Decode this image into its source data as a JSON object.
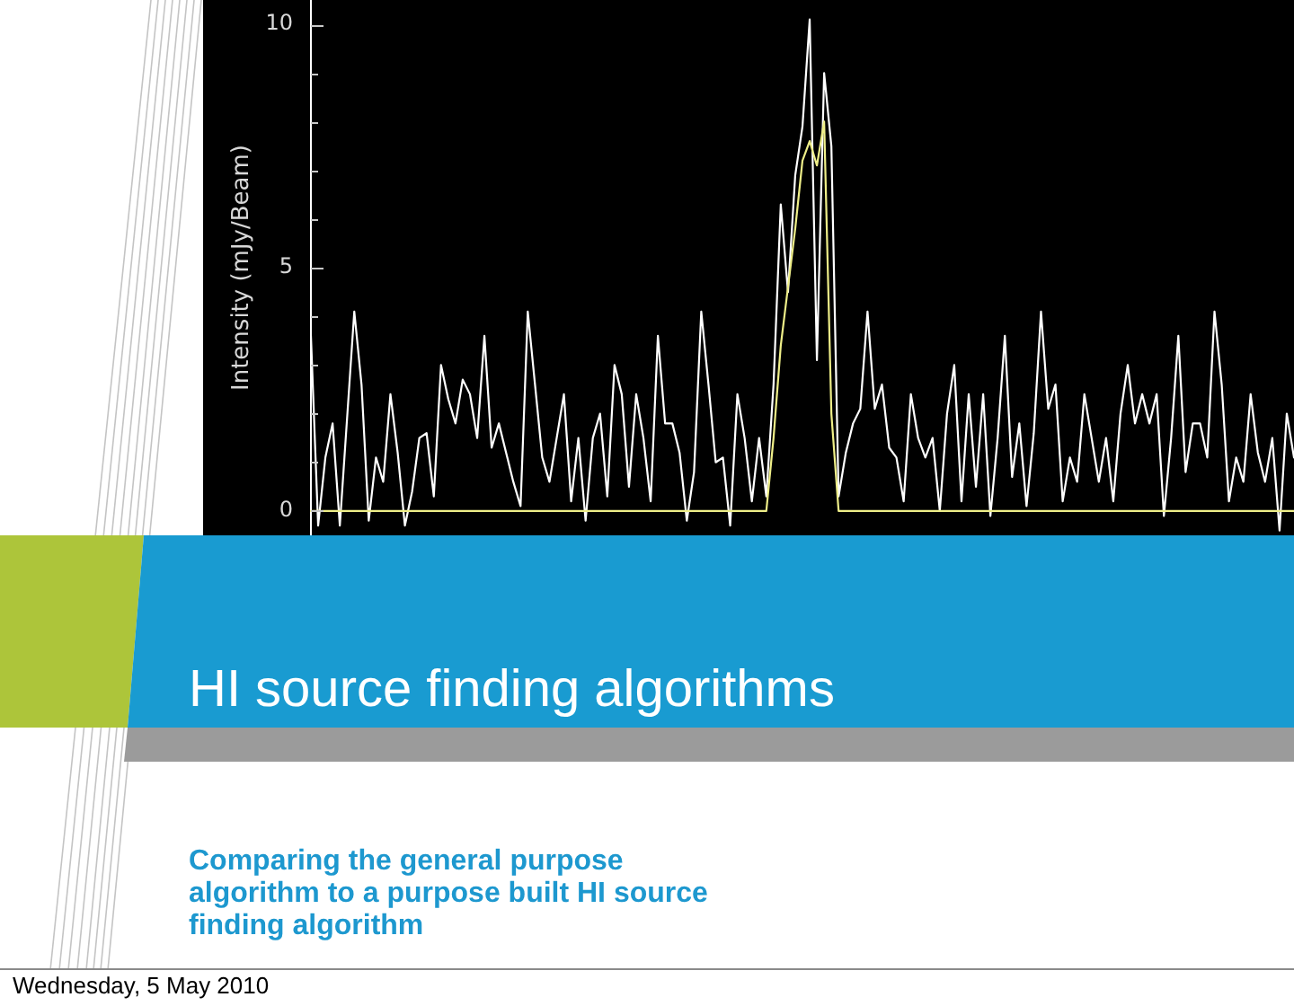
{
  "chart_data": {
    "type": "line",
    "title": "HI source finding algorithms",
    "subtitle": "Comparing the general purpose algorithm to a purpose built HI source finding algorithm",
    "annotations": [
      "Wednesday, 5 May 2010"
    ],
    "ylabel": "Intensity (mJy/Beam)",
    "categories": [
      null,
      null,
      null,
      null,
      null,
      null,
      null,
      null,
      null,
      null,
      null,
      null,
      null,
      null,
      null,
      null,
      null,
      null,
      null,
      null,
      null,
      null,
      null,
      null,
      null,
      null,
      null,
      null,
      null,
      null,
      null,
      null,
      null,
      null,
      null,
      null,
      null,
      null,
      null,
      null,
      null,
      null,
      null,
      null,
      null,
      null,
      null,
      null,
      null,
      null,
      null,
      null,
      null,
      null,
      null,
      null,
      null,
      null,
      null,
      null,
      null,
      null,
      null,
      null,
      null,
      null,
      null,
      null,
      null,
      null,
      null,
      null,
      null,
      null,
      null,
      null,
      null,
      null,
      null,
      null,
      null,
      null,
      null,
      null,
      null,
      null,
      null,
      null,
      null,
      null,
      null,
      null,
      null,
      null,
      null,
      null,
      null,
      null,
      null,
      null,
      null,
      null,
      null,
      null,
      null,
      null,
      null,
      null,
      null,
      null,
      null,
      null,
      null,
      null,
      null,
      null,
      null,
      null,
      null,
      null,
      null,
      null,
      null,
      null,
      null,
      null,
      null,
      null,
      null,
      null,
      null,
      null,
      null,
      null,
      null,
      null,
      null
    ],
    "series": [
      {
        "color": "#ffffff",
        "values": [
          3.6,
          -0.3,
          1.1,
          1.8,
          -0.3,
          1.9,
          4.1,
          2.6,
          -0.2,
          1.1,
          0.6,
          2.4,
          1.2,
          -0.3,
          0.4,
          1.5,
          1.6,
          0.3,
          3.0,
          2.3,
          1.8,
          2.7,
          2.4,
          1.5,
          3.6,
          1.3,
          1.8,
          1.2,
          0.6,
          0.1,
          4.1,
          2.6,
          1.1,
          0.6,
          1.5,
          2.4,
          0.2,
          1.5,
          -0.2,
          1.5,
          2.0,
          0.3,
          3.0,
          2.4,
          0.5,
          2.4,
          1.5,
          0.2,
          3.6,
          1.8,
          1.8,
          1.2,
          -0.2,
          0.8,
          4.1,
          2.6,
          1.0,
          1.1,
          -0.3,
          2.4,
          1.5,
          0.2,
          1.5,
          0.3,
          2.6,
          6.3,
          4.5,
          6.9,
          7.9,
          10.1,
          3.1,
          9.0,
          7.5,
          0.3,
          1.2,
          1.8,
          2.1,
          4.1,
          2.1,
          2.6,
          1.3,
          1.1,
          0.2,
          2.4,
          1.5,
          1.1,
          1.5,
          0.0,
          2.0,
          3.0,
          0.2,
          2.4,
          0.5,
          2.4,
          -0.1,
          1.5,
          3.6,
          0.7,
          1.8,
          0.1,
          1.6,
          4.1,
          2.1,
          2.6,
          0.2,
          1.1,
          0.6,
          2.4,
          1.5,
          0.6,
          1.5,
          0.2,
          2.0,
          3.0,
          1.8,
          2.4,
          1.8,
          2.4,
          -0.1,
          1.5,
          3.6,
          0.8,
          1.8,
          1.8,
          1.1,
          4.1,
          2.6,
          0.2,
          1.1,
          0.6,
          2.4,
          1.2,
          0.6,
          1.5,
          -0.4,
          2.0,
          1.1
        ]
      },
      {
        "color": "#eeee88",
        "values": [
          0,
          0,
          0,
          0,
          0,
          0,
          0,
          0,
          0,
          0,
          0,
          0,
          0,
          0,
          0,
          0,
          0,
          0,
          0,
          0,
          0,
          0,
          0,
          0,
          0,
          0,
          0,
          0,
          0,
          0,
          0,
          0,
          0,
          0,
          0,
          0,
          0,
          0,
          0,
          0,
          0,
          0,
          0,
          0,
          0,
          0,
          0,
          0,
          0,
          0,
          0,
          0,
          0,
          0,
          0,
          0,
          0,
          0,
          0,
          0,
          0,
          0,
          0,
          0,
          1.5,
          3.4,
          4.6,
          5.8,
          7.2,
          7.6,
          7.1,
          8.0,
          2.0,
          0,
          0,
          0,
          0,
          0,
          0,
          0,
          0,
          0,
          0,
          0,
          0,
          0,
          0,
          0,
          0,
          0,
          0,
          0,
          0,
          0,
          0,
          0,
          0,
          0,
          0,
          0,
          0,
          0,
          0,
          0,
          0,
          0,
          0,
          0,
          0,
          0,
          0,
          0,
          0,
          0,
          0,
          0,
          0,
          0,
          0,
          0,
          0,
          0,
          0,
          0,
          0,
          0,
          0,
          0,
          0,
          0,
          0,
          0,
          0,
          0,
          0,
          0,
          0
        ]
      }
    ],
    "ylim": [
      -0.5,
      10.5
    ],
    "yticks": [
      0,
      {
        "value": 1,
        "label": null
      },
      {
        "value": 2,
        "label": null
      },
      {
        "value": 3,
        "label": null
      },
      {
        "value": 4,
        "label": null
      },
      5,
      {
        "value": 6,
        "label": null
      },
      {
        "value": 7,
        "label": null
      },
      {
        "value": 8,
        "label": null
      },
      {
        "value": 9,
        "label": null
      },
      10
    ],
    "tick_labels": "y"
  }
}
